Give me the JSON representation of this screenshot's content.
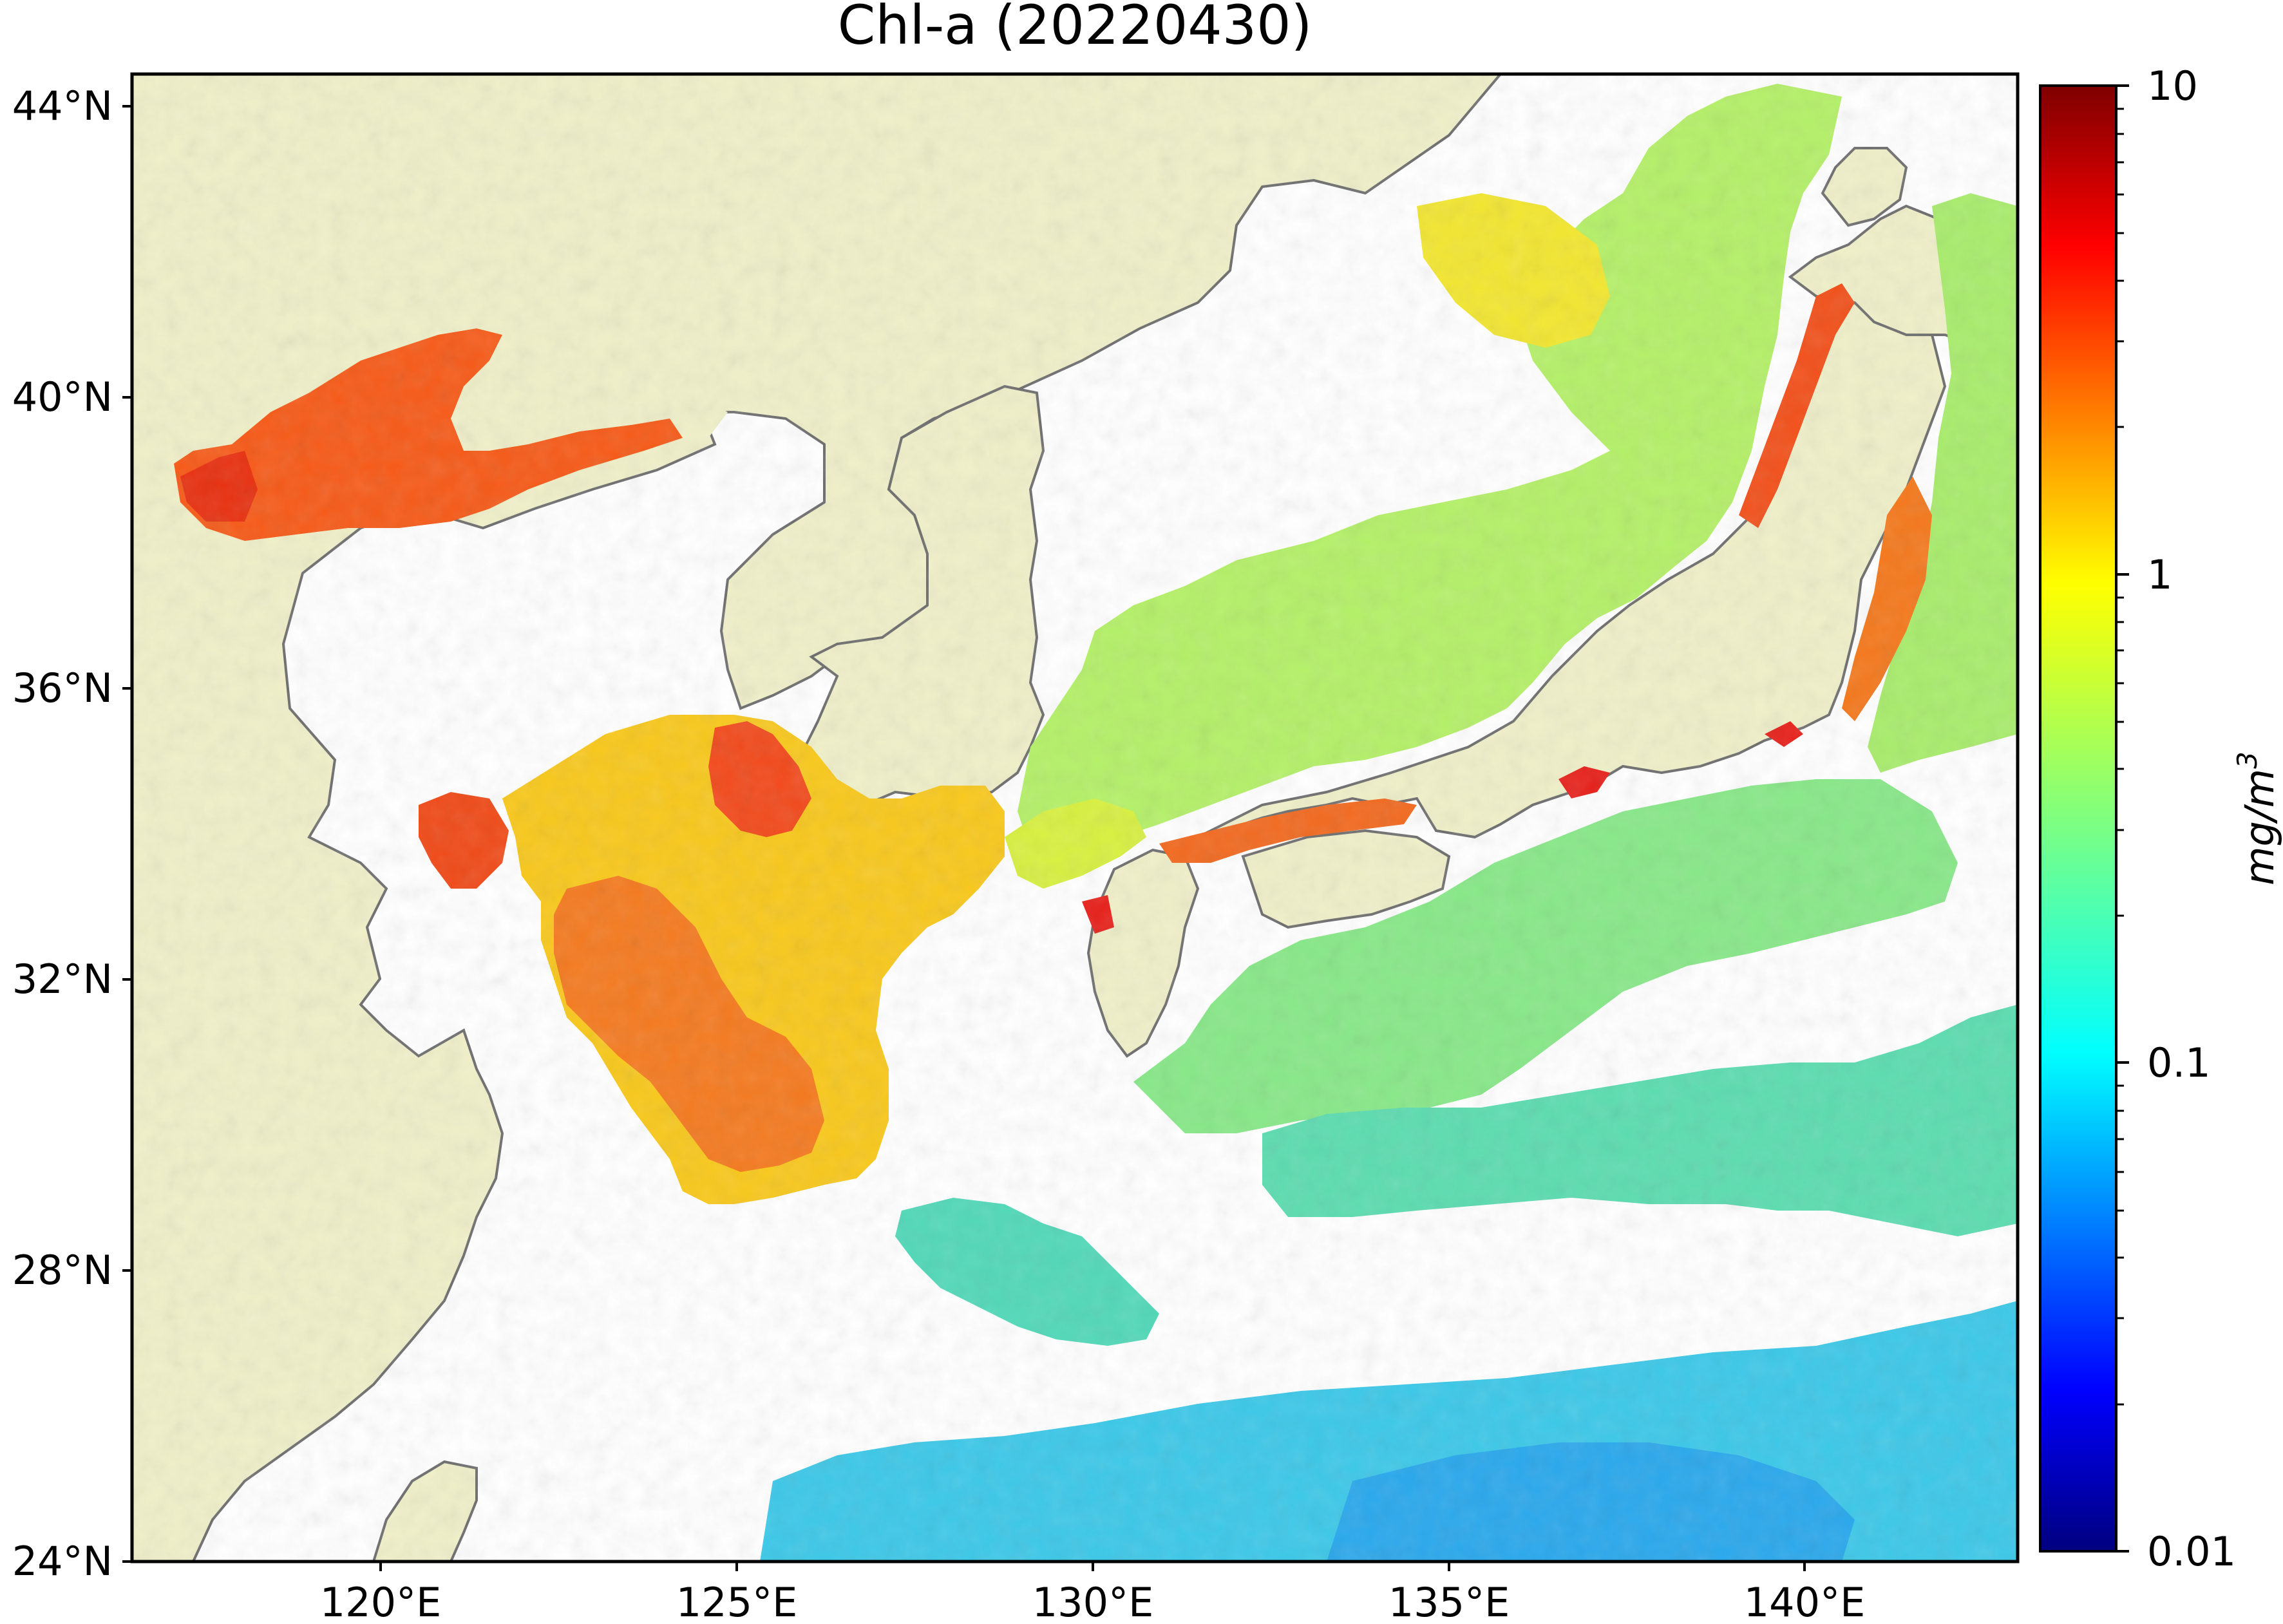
{
  "title": "Chl-a (20220430)",
  "map": {
    "lat_labels": [
      "44°N",
      "40°N",
      "36°N",
      "32°N",
      "28°N",
      "24°N"
    ],
    "lon_labels": [
      "120°E",
      "125°E",
      "130°E",
      "135°E",
      "140°E"
    ],
    "lat_range": [
      24,
      44
    ],
    "lon_range": [
      116.5,
      143
    ]
  },
  "colorbar": {
    "ticks": [
      "10",
      "1",
      "0.1",
      "0.01"
    ],
    "unit_base": "mg/m",
    "unit_exp": "3",
    "scale": "log",
    "range": [
      0.01,
      10
    ],
    "colormap": [
      "#00007f",
      "#0000ff",
      "#007fff",
      "#00ffff",
      "#7fff7f",
      "#ffff00",
      "#ff7f00",
      "#ff0000",
      "#7f0000"
    ]
  },
  "colors": {
    "land": "#efefc9",
    "no_data": "#ffffff",
    "coastline": "#6e6e6e"
  }
}
